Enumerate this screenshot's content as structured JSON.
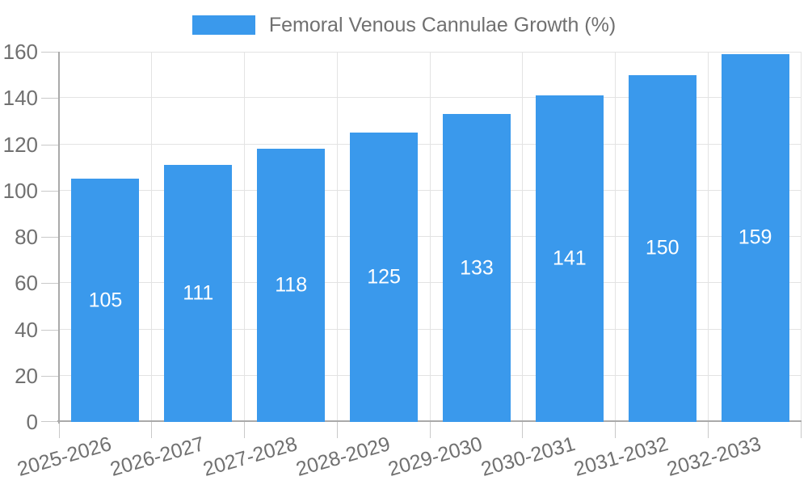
{
  "chart_data": {
    "type": "bar",
    "title": "",
    "legend_label": "Femoral Venous Cannulae Growth (%)",
    "legend_position": "top",
    "categories": [
      "2025-2026",
      "2026-2027",
      "2027-2028",
      "2028-2029",
      "2029-2030",
      "2030-2031",
      "2031-2032",
      "2032-2033"
    ],
    "series": [
      {
        "name": "Femoral Venous Cannulae Growth (%)",
        "values": [
          105,
          111,
          118,
          125,
          133,
          141,
          150,
          159
        ]
      }
    ],
    "value_labels_inside_bars": true,
    "xlabel": "",
    "ylabel": "",
    "ylim": [
      0,
      160
    ],
    "yticks": [
      0,
      20,
      40,
      60,
      80,
      100,
      120,
      140,
      160
    ],
    "grid": "both",
    "x_label_rotation_deg": -16,
    "colors": {
      "bar": "#3A99EC",
      "text": "#707070",
      "value_text": "#FFFFFF",
      "gridline": "#E3E3E3",
      "tick": "#C9C9C9",
      "axis": "#AAAAAA",
      "background": "#FFFFFF"
    }
  }
}
